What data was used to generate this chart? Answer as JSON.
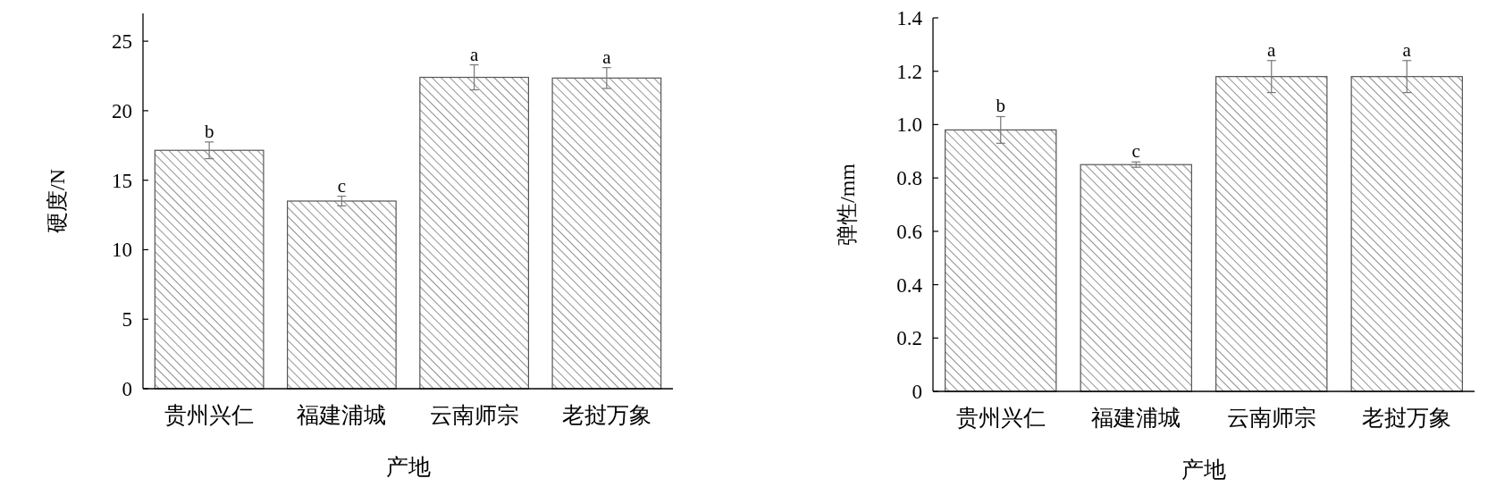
{
  "chart_data": [
    {
      "type": "bar",
      "xlabel": "产地",
      "ylabel": "硬度/N",
      "categories": [
        "贵州兴仁",
        "福建浦城",
        "云南师宗",
        "老挝万象"
      ],
      "series": [
        {
          "color": "#555555",
          "values": [
            17.15,
            13.5,
            22.4,
            22.35
          ],
          "errors": [
            0.6,
            0.35,
            0.9,
            0.75
          ]
        }
      ],
      "ylim": [
        0,
        27
      ],
      "yticks": [
        0,
        5,
        10,
        15,
        20,
        25
      ],
      "grid": false,
      "annotations": [
        {
          "text": "b",
          "x": "贵州兴仁",
          "y": 17.75
        },
        {
          "text": "c",
          "x": "福建浦城",
          "y": 13.85
        },
        {
          "text": "a",
          "x": "云南师宗",
          "y": 23.3
        },
        {
          "text": "a",
          "x": "老挝万象",
          "y": 23.1
        }
      ]
    },
    {
      "type": "bar",
      "xlabel": "产地",
      "ylabel": "弹性/mm",
      "categories": [
        "贵州兴仁",
        "福建浦城",
        "云南师宗",
        "老挝万象"
      ],
      "series": [
        {
          "color": "#555555",
          "values": [
            0.98,
            0.85,
            1.18,
            1.18
          ],
          "errors": [
            0.05,
            0.01,
            0.06,
            0.06
          ]
        }
      ],
      "ylim": [
        0,
        1.4
      ],
      "yticks": [
        0,
        {
          "value": 0.2,
          "label": "0.2"
        },
        {
          "value": 0.4,
          "label": "0.4"
        },
        {
          "value": 0.6,
          "label": "0.6"
        },
        {
          "value": 0.8,
          "label": "0.8"
        },
        {
          "value": 1,
          "label": "1.0"
        },
        {
          "value": 1.2,
          "label": "1.2"
        },
        {
          "value": 1.4,
          "label": "1.4"
        }
      ],
      "grid": false,
      "annotations": [
        {
          "text": "b",
          "x": "贵州兴仁",
          "y": 1.03
        },
        {
          "text": "c",
          "x": "福建浦城",
          "y": 0.86
        },
        {
          "text": "a",
          "x": "云南师宗",
          "y": 1.24
        },
        {
          "text": "a",
          "x": "老挝万象",
          "y": 1.24
        }
      ]
    }
  ]
}
